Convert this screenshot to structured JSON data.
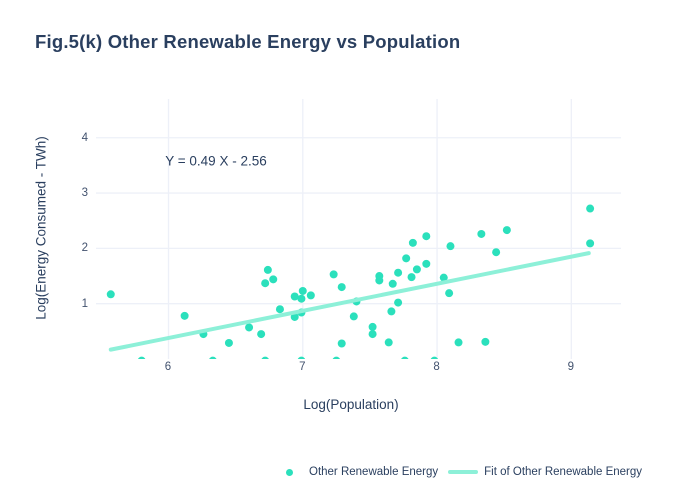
{
  "title": "Fig.5(k) Other Renewable Energy vs Population",
  "colors": {
    "marker": "#2be0bc",
    "fit_line": "#8df0d8",
    "grid": "#edf0f8",
    "text_dark": "#2a3f5f",
    "tick_text": "#42526e",
    "background": "#ffffff"
  },
  "chart_data": {
    "type": "scatter",
    "title": "Fig.5(k) Other Renewable Energy vs Population",
    "xlabel": "Log(Population)",
    "ylabel": "Log(Energy Consumed - TWh)",
    "x_ticks": [
      6,
      7,
      8,
      9
    ],
    "y_ticks": [
      1,
      2,
      3,
      4
    ],
    "x_range": [
      5.46,
      9.37
    ],
    "y_range": [
      0,
      4.7
    ],
    "grid": true,
    "legend_position": "bottom-center",
    "annotation": {
      "text": "Y = 0.49 X - 2.56",
      "x": 6.35,
      "y": 3.57
    },
    "series": [
      {
        "name": "Other Renewable Energy",
        "type": "scatter",
        "color": "#2be0bc",
        "marker_radius": 4,
        "points": [
          [
            5.57,
            1.17
          ],
          [
            5.8,
            -0.03
          ],
          [
            6.12,
            0.78
          ],
          [
            6.26,
            0.45
          ],
          [
            6.33,
            -0.03
          ],
          [
            6.45,
            0.29
          ],
          [
            6.6,
            0.57
          ],
          [
            6.69,
            0.45
          ],
          [
            6.72,
            -0.03
          ],
          [
            6.72,
            1.37
          ],
          [
            6.74,
            1.61
          ],
          [
            6.78,
            1.44
          ],
          [
            6.83,
            0.9
          ],
          [
            6.94,
            1.13
          ],
          [
            6.94,
            0.76
          ],
          [
            6.99,
            1.09
          ],
          [
            6.99,
            0.84
          ],
          [
            6.99,
            -0.03
          ],
          [
            7.0,
            1.23
          ],
          [
            7.06,
            1.15
          ],
          [
            7.23,
            1.53
          ],
          [
            7.25,
            -0.03
          ],
          [
            7.29,
            1.3
          ],
          [
            7.29,
            0.28
          ],
          [
            7.38,
            0.77
          ],
          [
            7.4,
            1.04
          ],
          [
            7.52,
            0.58
          ],
          [
            7.52,
            0.45
          ],
          [
            7.57,
            1.5
          ],
          [
            7.57,
            1.42
          ],
          [
            7.64,
            0.3
          ],
          [
            7.66,
            0.86
          ],
          [
            7.67,
            1.36
          ],
          [
            7.71,
            1.56
          ],
          [
            7.71,
            1.02
          ],
          [
            7.76,
            -0.03
          ],
          [
            7.77,
            1.82
          ],
          [
            7.81,
            1.48
          ],
          [
            7.82,
            2.1
          ],
          [
            7.85,
            1.62
          ],
          [
            7.92,
            2.22
          ],
          [
            7.92,
            1.72
          ],
          [
            7.98,
            -0.03
          ],
          [
            8.05,
            1.47
          ],
          [
            8.09,
            1.19
          ],
          [
            8.1,
            2.04
          ],
          [
            8.16,
            0.3
          ],
          [
            8.33,
            2.26
          ],
          [
            8.36,
            0.31
          ],
          [
            8.44,
            1.93
          ],
          [
            8.52,
            2.33
          ],
          [
            9.14,
            2.72
          ],
          [
            9.14,
            2.09
          ]
        ]
      },
      {
        "name": "Fit of Other Renewable Energy",
        "type": "line",
        "color": "#8df0d8",
        "line_width": 4,
        "slope": 0.49,
        "intercept": -2.56,
        "x_start": 5.57,
        "x_end": 9.13
      }
    ]
  }
}
